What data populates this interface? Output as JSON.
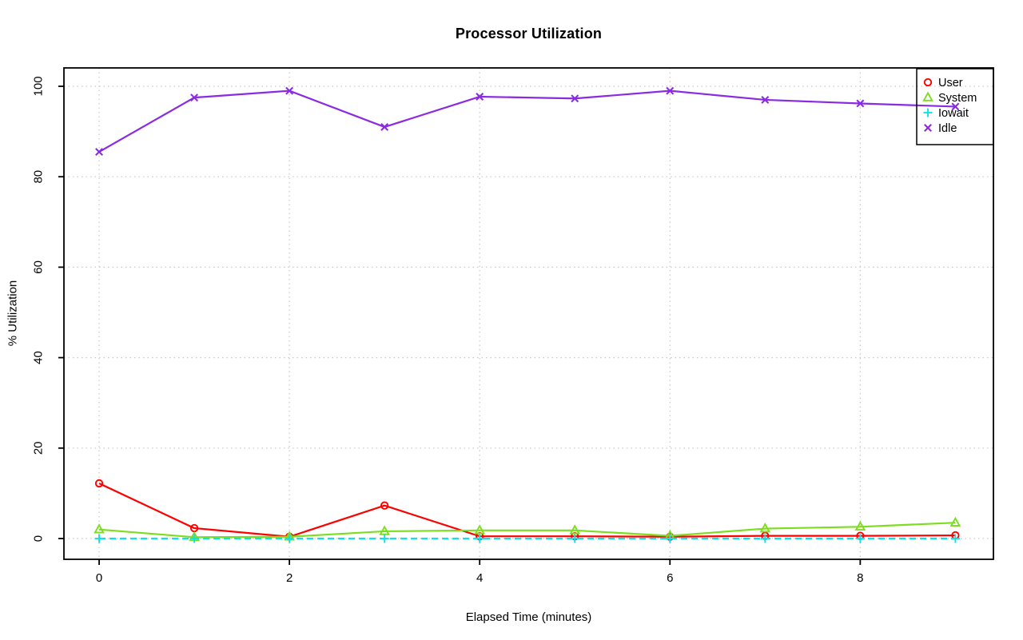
{
  "chart_data": {
    "type": "line",
    "title": "Processor Utilization",
    "xlabel": "Elapsed Time (minutes)",
    "ylabel": "% Utilization",
    "x": [
      0,
      1,
      2,
      3,
      4,
      5,
      6,
      7,
      8,
      9
    ],
    "xticks": [
      0,
      2,
      4,
      6,
      8
    ],
    "yticks": [
      0,
      20,
      40,
      60,
      80,
      100
    ],
    "xlim": [
      -0.37,
      9.4
    ],
    "ylim": [
      -4.59,
      104.06
    ],
    "grid": "dotted",
    "grid_color": "#c8c8c8",
    "legend_position": "top-right",
    "series": [
      {
        "name": "User",
        "color": "#ff0000",
        "marker": "circle",
        "linestyle": "solid",
        "values": [
          12.2,
          2.3,
          0.4,
          7.3,
          0.5,
          0.5,
          0.4,
          0.6,
          0.6,
          0.7
        ]
      },
      {
        "name": "System",
        "color": "#7cde1e",
        "marker": "triangle",
        "linestyle": "solid",
        "values": [
          2.0,
          0.3,
          0.4,
          1.6,
          1.8,
          1.8,
          0.6,
          2.2,
          2.6,
          3.5
        ]
      },
      {
        "name": "Iowait",
        "color": "#12e0e8",
        "marker": "plus",
        "linestyle": "dashed",
        "values": [
          0,
          0,
          0,
          0,
          0,
          0,
          0,
          0,
          0,
          0
        ]
      },
      {
        "name": "Idle",
        "color": "#8a2be2",
        "marker": "x",
        "linestyle": "solid",
        "values": [
          85.5,
          97.5,
          99.0,
          91.0,
          97.7,
          97.3,
          99.0,
          97.0,
          96.2,
          95.5
        ]
      }
    ]
  }
}
